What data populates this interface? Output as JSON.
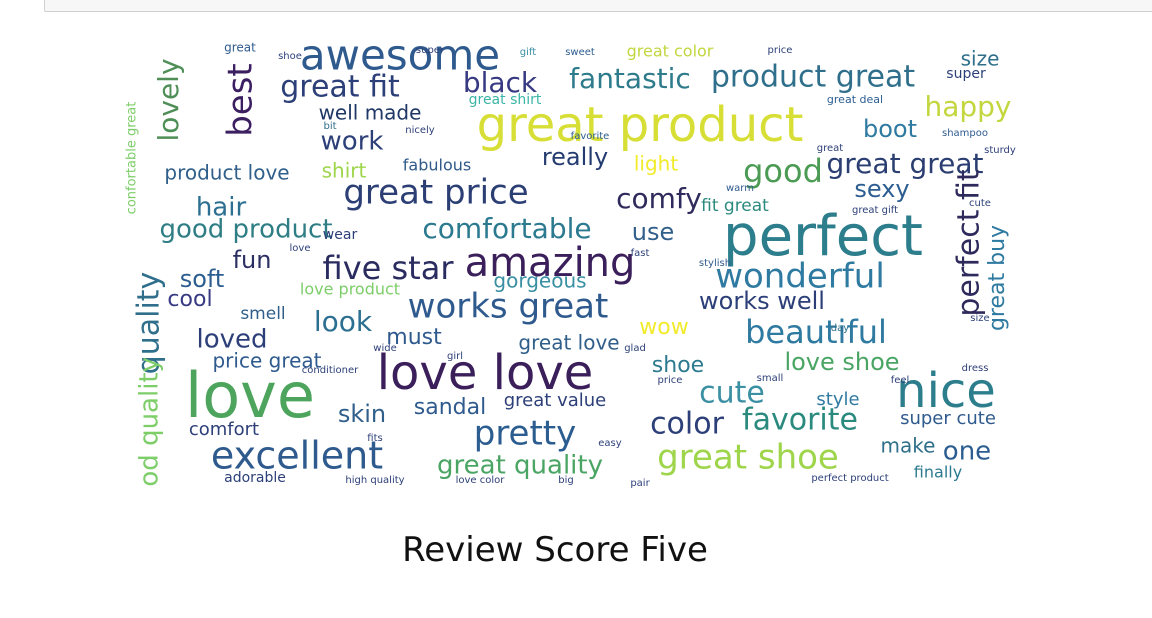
{
  "notebook": {
    "title": "Review Score Five"
  },
  "chart_data": {
    "type": "wordcloud",
    "title": "Review Score Five",
    "words": [
      {
        "text": "awesome",
        "size": 42,
        "color": "#2f5a8e"
      },
      {
        "text": "great fit",
        "size": 30,
        "color": "#2c3f78"
      },
      {
        "text": "best",
        "size": 34,
        "color": "#3b1f61",
        "rotate": -90
      },
      {
        "text": "lovely",
        "size": 28,
        "color": "#4f8f57",
        "rotate": -90
      },
      {
        "text": "black",
        "size": 28,
        "color": "#373a82"
      },
      {
        "text": "fantastic",
        "size": 28,
        "color": "#2d7b8b"
      },
      {
        "text": "product great",
        "size": 30,
        "color": "#2f6f8b"
      },
      {
        "text": "size",
        "size": 20,
        "color": "#2f6f8b"
      },
      {
        "text": "well made",
        "size": 20,
        "color": "#1f3765"
      },
      {
        "text": "great shirt",
        "size": 14,
        "color": "#3bb5a5"
      },
      {
        "text": "happy",
        "size": 28,
        "color": "#c3d63e"
      },
      {
        "text": "great product",
        "size": 48,
        "color": "#d7df37"
      },
      {
        "text": "boot",
        "size": 24,
        "color": "#2f7aa1"
      },
      {
        "text": "work",
        "size": 26,
        "color": "#2d3f79"
      },
      {
        "text": "confortable great",
        "size": 13,
        "color": "#7dce69",
        "rotate": -90
      },
      {
        "text": "really",
        "size": 24,
        "color": "#253c71"
      },
      {
        "text": "light",
        "size": 20,
        "color": "#f1eb2a"
      },
      {
        "text": "good",
        "size": 32,
        "color": "#4c9b54"
      },
      {
        "text": "great great",
        "size": 28,
        "color": "#2a3e72"
      },
      {
        "text": "product love",
        "size": 20,
        "color": "#2f5f8a"
      },
      {
        "text": "shirt",
        "size": 20,
        "color": "#9ed54a"
      },
      {
        "text": "fabulous",
        "size": 16,
        "color": "#2f5a8a"
      },
      {
        "text": "great price",
        "size": 34,
        "color": "#2c3f75"
      },
      {
        "text": "comfy",
        "size": 28,
        "color": "#2f2a5c"
      },
      {
        "text": "sexy",
        "size": 24,
        "color": "#2c5d90"
      },
      {
        "text": "hair",
        "size": 26,
        "color": "#2c6f90"
      },
      {
        "text": "fit great",
        "size": 17,
        "color": "#2b8a7e"
      },
      {
        "text": "perfect fit",
        "size": 30,
        "color": "#2f2a5c",
        "rotate": -90
      },
      {
        "text": "great buy",
        "size": 22,
        "color": "#2f7aa1",
        "rotate": -90
      },
      {
        "text": "good product",
        "size": 26,
        "color": "#2f7e85"
      },
      {
        "text": "comfortable",
        "size": 28,
        "color": "#2c7a90"
      },
      {
        "text": "use",
        "size": 24,
        "color": "#2f5f8a"
      },
      {
        "text": "perfect",
        "size": 56,
        "color": "#2d7e8d"
      },
      {
        "text": "fun",
        "size": 24,
        "color": "#2c2f62"
      },
      {
        "text": "five star",
        "size": 32,
        "color": "#2a2b5f"
      },
      {
        "text": "amazing",
        "size": 40,
        "color": "#3a1f5a"
      },
      {
        "text": "wonderful",
        "size": 34,
        "color": "#2f7aa1"
      },
      {
        "text": "soft",
        "size": 24,
        "color": "#2c5d90"
      },
      {
        "text": "cool",
        "size": 22,
        "color": "#373a82"
      },
      {
        "text": "love product",
        "size": 16,
        "color": "#7dce69"
      },
      {
        "text": "gorgeous",
        "size": 20,
        "color": "#3a8fa3"
      },
      {
        "text": "works well",
        "size": 24,
        "color": "#2c3f78"
      },
      {
        "text": "quality",
        "size": 30,
        "color": "#2f6f8b",
        "rotate": -90
      },
      {
        "text": "smell",
        "size": 17,
        "color": "#2f5f8a"
      },
      {
        "text": "look",
        "size": 28,
        "color": "#2c6f90"
      },
      {
        "text": "works great",
        "size": 34,
        "color": "#2f5a8e"
      },
      {
        "text": "wow",
        "size": 22,
        "color": "#f1eb2a"
      },
      {
        "text": "beautiful",
        "size": 32,
        "color": "#2f7aa1"
      },
      {
        "text": "loved",
        "size": 26,
        "color": "#2c3f78"
      },
      {
        "text": "must",
        "size": 22,
        "color": "#2f5a8e"
      },
      {
        "text": "great love",
        "size": 20,
        "color": "#2f5f8a"
      },
      {
        "text": "price great",
        "size": 20,
        "color": "#2f5a8e"
      },
      {
        "text": "shoe",
        "size": 22,
        "color": "#2c7a90"
      },
      {
        "text": "love shoe",
        "size": 24,
        "color": "#4aa564"
      },
      {
        "text": "love",
        "size": 62,
        "color": "#4da45c"
      },
      {
        "text": "love love",
        "size": 48,
        "color": "#3a1f5a"
      },
      {
        "text": "nice",
        "size": 48,
        "color": "#2d7e8d"
      },
      {
        "text": "cute",
        "size": 30,
        "color": "#3a8fa3"
      },
      {
        "text": "good quality",
        "size": 26,
        "color": "#7dce69",
        "rotate": -90
      },
      {
        "text": "skin",
        "size": 24,
        "color": "#2f5f8a"
      },
      {
        "text": "sandal",
        "size": 22,
        "color": "#2f5a8e"
      },
      {
        "text": "great value",
        "size": 18,
        "color": "#2c3f78"
      },
      {
        "text": "style",
        "size": 18,
        "color": "#2f7aa1"
      },
      {
        "text": "favorite",
        "size": 30,
        "color": "#2b8a7e"
      },
      {
        "text": "super cute",
        "size": 18,
        "color": "#2f5a8e"
      },
      {
        "text": "comfort",
        "size": 18,
        "color": "#2c3f78"
      },
      {
        "text": "pretty",
        "size": 34,
        "color": "#2c5d90"
      },
      {
        "text": "color",
        "size": 30,
        "color": "#2c3f78"
      },
      {
        "text": "excellent",
        "size": 38,
        "color": "#2f5a8e"
      },
      {
        "text": "great shoe",
        "size": 34,
        "color": "#9ed54a"
      },
      {
        "text": "make",
        "size": 20,
        "color": "#2f6f8b"
      },
      {
        "text": "one",
        "size": 26,
        "color": "#2c5d90"
      },
      {
        "text": "great quality",
        "size": 26,
        "color": "#4aa564"
      },
      {
        "text": "adorable",
        "size": 14,
        "color": "#2c3f78"
      },
      {
        "text": "finally",
        "size": 16,
        "color": "#2c7a90"
      },
      {
        "text": "great color",
        "size": 16,
        "color": "#c3d63e"
      },
      {
        "text": "super",
        "size": 14,
        "color": "#2c3f78"
      },
      {
        "text": "great deal",
        "size": 11,
        "color": "#2c5d90"
      },
      {
        "text": "shampoo",
        "size": 10,
        "color": "#2f5a8e"
      },
      {
        "text": "great gift",
        "size": 10,
        "color": "#2c3f78"
      },
      {
        "text": "dress",
        "size": 10,
        "color": "#2c3f78"
      },
      {
        "text": "wear",
        "size": 14,
        "color": "#2c3f78"
      },
      {
        "text": "conditioner",
        "size": 10,
        "color": "#2c3f78"
      },
      {
        "text": "girl",
        "size": 10,
        "color": "#2c3f78"
      }
    ]
  }
}
